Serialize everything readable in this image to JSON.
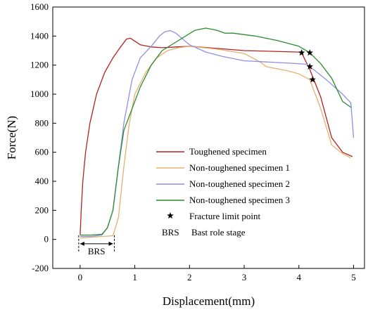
{
  "chart_data": {
    "type": "line",
    "xlabel": "Displacement(mm)",
    "ylabel": "Force(N)",
    "xlim": [
      -0.5,
      5.2
    ],
    "ylim": [
      -200,
      1600
    ],
    "xticks": [
      0,
      1,
      2,
      3,
      4,
      5
    ],
    "yticks": [
      -200,
      0,
      200,
      400,
      600,
      800,
      1000,
      1200,
      1400,
      1600
    ],
    "grid": false,
    "legend_position": "lower-right (inside)",
    "series": [
      {
        "name": "Toughened specimen",
        "color": "#b22222",
        "points": [
          [
            0,
            30
          ],
          [
            0.02,
            200
          ],
          [
            0.05,
            400
          ],
          [
            0.1,
            600
          ],
          [
            0.18,
            800
          ],
          [
            0.3,
            1000
          ],
          [
            0.45,
            1150
          ],
          [
            0.6,
            1250
          ],
          [
            0.75,
            1330
          ],
          [
            0.85,
            1380
          ],
          [
            0.92,
            1385
          ],
          [
            1.0,
            1365
          ],
          [
            1.1,
            1340
          ],
          [
            1.3,
            1325
          ],
          [
            1.5,
            1320
          ],
          [
            2.0,
            1330
          ],
          [
            2.5,
            1315
          ],
          [
            3.0,
            1300
          ],
          [
            3.5,
            1295
          ],
          [
            4.0,
            1290
          ],
          [
            4.05,
            1285
          ],
          [
            4.2,
            1170
          ],
          [
            4.4,
            980
          ],
          [
            4.6,
            700
          ],
          [
            4.8,
            600
          ],
          [
            4.98,
            570
          ]
        ]
      },
      {
        "name": "Non-toughened specimen 1",
        "color": "#e5b070",
        "points": [
          [
            0,
            10
          ],
          [
            0.2,
            15
          ],
          [
            0.6,
            25
          ],
          [
            0.7,
            150
          ],
          [
            0.8,
            500
          ],
          [
            0.9,
            800
          ],
          [
            1.0,
            1000
          ],
          [
            1.2,
            1150
          ],
          [
            1.4,
            1250
          ],
          [
            1.6,
            1300
          ],
          [
            1.8,
            1320
          ],
          [
            2.0,
            1330
          ],
          [
            2.5,
            1310
          ],
          [
            3.0,
            1280
          ],
          [
            3.3,
            1220
          ],
          [
            3.4,
            1190
          ],
          [
            3.8,
            1160
          ],
          [
            4.0,
            1140
          ],
          [
            4.2,
            1100
          ],
          [
            4.4,
            900
          ],
          [
            4.6,
            650
          ],
          [
            4.8,
            590
          ],
          [
            4.95,
            560
          ]
        ]
      },
      {
        "name": "Non-toughened specimen 2",
        "color": "#8f8fe6",
        "points": [
          [
            0,
            20
          ],
          [
            0.2,
            20
          ],
          [
            0.4,
            30
          ],
          [
            0.5,
            80
          ],
          [
            0.6,
            200
          ],
          [
            0.7,
            500
          ],
          [
            0.8,
            800
          ],
          [
            0.95,
            1100
          ],
          [
            1.1,
            1250
          ],
          [
            1.3,
            1330
          ],
          [
            1.45,
            1400
          ],
          [
            1.55,
            1430
          ],
          [
            1.65,
            1438
          ],
          [
            1.75,
            1420
          ],
          [
            2.0,
            1340
          ],
          [
            2.3,
            1290
          ],
          [
            2.6,
            1260
          ],
          [
            3.0,
            1230
          ],
          [
            3.5,
            1220
          ],
          [
            4.0,
            1210
          ],
          [
            4.15,
            1205
          ],
          [
            4.2,
            1190
          ],
          [
            4.5,
            1100
          ],
          [
            4.8,
            1000
          ],
          [
            4.95,
            940
          ],
          [
            5.0,
            700
          ]
        ]
      },
      {
        "name": "Non-toughened specimen 3",
        "color": "#2e8b2e",
        "points": [
          [
            0,
            30
          ],
          [
            0.2,
            30
          ],
          [
            0.4,
            35
          ],
          [
            0.5,
            80
          ],
          [
            0.6,
            200
          ],
          [
            0.7,
            500
          ],
          [
            0.8,
            750
          ],
          [
            0.95,
            900
          ],
          [
            1.1,
            1050
          ],
          [
            1.3,
            1200
          ],
          [
            1.5,
            1300
          ],
          [
            1.8,
            1370
          ],
          [
            2.1,
            1440
          ],
          [
            2.3,
            1455
          ],
          [
            2.5,
            1440
          ],
          [
            2.65,
            1420
          ],
          [
            2.8,
            1420
          ],
          [
            3.2,
            1400
          ],
          [
            3.6,
            1370
          ],
          [
            4.0,
            1330
          ],
          [
            4.2,
            1285
          ],
          [
            4.4,
            1210
          ],
          [
            4.6,
            1110
          ],
          [
            4.8,
            950
          ],
          [
            4.95,
            910
          ]
        ]
      }
    ],
    "fracture_points": [
      [
        4.05,
        1285
      ],
      [
        4.2,
        1285
      ],
      [
        4.2,
        1190
      ],
      [
        4.25,
        1100
      ]
    ],
    "annotations": {
      "brs_label": "BRS",
      "brs_x_range": [
        0,
        0.6
      ],
      "brs_y": -30
    },
    "legend": {
      "items": [
        {
          "label": "Toughened specimen",
          "color": "#b22222"
        },
        {
          "label": "Non-toughened specimen 1",
          "color": "#e5b070"
        },
        {
          "label": "Non-toughened specimen 2",
          "color": "#8f8fe6"
        },
        {
          "label": "Non-toughened specimen 3",
          "color": "#2e8b2e"
        }
      ],
      "fracture_label": "Fracture limit point",
      "brs_abbrev": "BRS",
      "brs_desc": "Bast role stage"
    }
  }
}
